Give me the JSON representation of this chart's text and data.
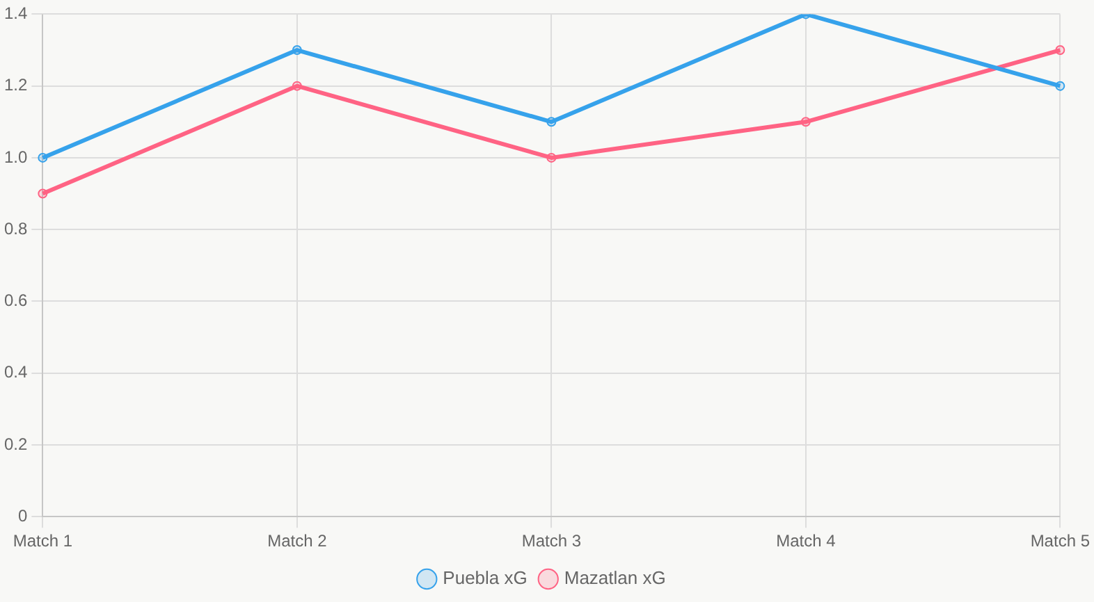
{
  "chart_data": {
    "type": "line",
    "categories": [
      "Match 1",
      "Match 2",
      "Match 3",
      "Match 4",
      "Match 5"
    ],
    "series": [
      {
        "name": "Puebla xG",
        "color": "#36a2eb",
        "values": [
          1.0,
          1.3,
          1.1,
          1.4,
          1.2
        ]
      },
      {
        "name": "Mazatlan xG",
        "color": "#ff6384",
        "values": [
          0.9,
          1.2,
          1.0,
          1.1,
          1.3
        ]
      }
    ],
    "ylim": [
      0,
      1.4
    ],
    "yticks": [
      0,
      {
        "value": 0.2,
        "label": "0.2"
      },
      {
        "value": 0.4,
        "label": "0.4"
      },
      {
        "value": 0.6,
        "label": "0.6"
      },
      {
        "value": 0.8,
        "label": "0.8"
      },
      {
        "value": 1,
        "label": "1.0"
      },
      {
        "value": 1.2,
        "label": "1.2"
      },
      {
        "value": 1.4,
        "label": "1.4"
      }
    ],
    "grid": true,
    "legend": "bottom",
    "marker": "circle",
    "line_style": "solid"
  }
}
